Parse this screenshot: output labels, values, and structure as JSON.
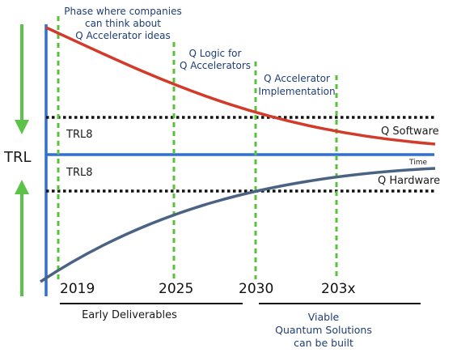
{
  "colors": {
    "software_curve": "#d23a2a",
    "hardware_curve": "#4a6383",
    "axis_blue": "#2f6fd6",
    "arrow_green": "#5cc24a",
    "dashed_green": "#58c23a",
    "dotted_black": "#111111",
    "phase_text": "#1f3d73"
  },
  "axis": {
    "y_label": "TRL",
    "time_label": "Time"
  },
  "thresholds": {
    "upper_label": "TRL8",
    "lower_label": "TRL8"
  },
  "curves": {
    "software_label": "Q Software",
    "hardware_label": "Q Hardware"
  },
  "phases": {
    "phase1_line1": "Phase where companies",
    "phase1_line2": "can think about",
    "phase1_line3": "Q Accelerator ideas",
    "phase2_line1": "Q Logic for",
    "phase2_line2": "Q Accelerators",
    "phase3_line1": "Q Accelerator",
    "phase3_line2": "Implementation"
  },
  "years": [
    "2019",
    "2025",
    "2030",
    "203x"
  ],
  "periods": {
    "early": "Early Deliverables",
    "viable_line1": "Viable",
    "viable_line2": "Quantum Solutions",
    "viable_line3": "can be built"
  }
}
